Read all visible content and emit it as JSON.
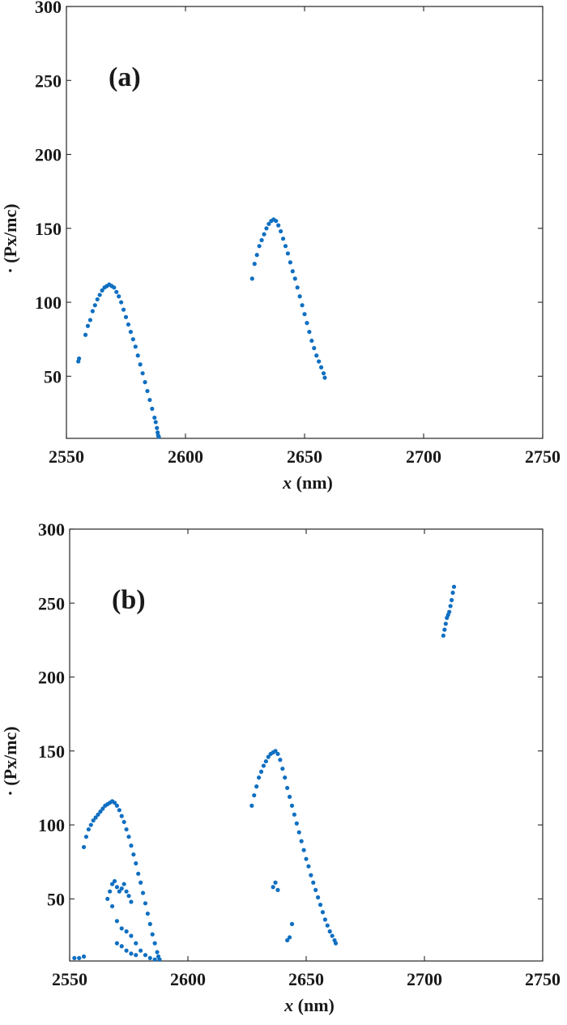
{
  "chart_data": [
    {
      "type": "scatter",
      "panel_label": "(a)",
      "xlabel": "x",
      "xlabel_unit": " (nm)",
      "ylabel_prefix": "·",
      "ylabel": "(Px/mc)",
      "xlim": [
        2550,
        2750
      ],
      "ylim": [
        8,
        300
      ],
      "xticks": [
        "2550",
        "2600",
        "2650",
        "2700",
        "2750"
      ],
      "yticks": [
        "50",
        "100",
        "150",
        "200",
        "250",
        "300"
      ],
      "grid": false,
      "legend": "none",
      "marker_color": "#0f6fc1",
      "series": [
        {
          "x": [
            2555,
            2555.3,
            2558,
            2559,
            2560,
            2561,
            2562,
            2563,
            2564,
            2565,
            2566,
            2567,
            2568,
            2569,
            2570,
            2571,
            2572,
            2573,
            2574,
            2575,
            2576,
            2577,
            2578,
            2579,
            2580,
            2581,
            2582,
            2583,
            2584,
            2585,
            2586,
            2587,
            2587.5,
            2588,
            2588.3,
            2588.5,
            2588.8
          ],
          "y": [
            60,
            62,
            78,
            84,
            88,
            94,
            98,
            102,
            105,
            108,
            110,
            111,
            112,
            111,
            110,
            107,
            104,
            100,
            95,
            90,
            85,
            80,
            75,
            70,
            64,
            58,
            52,
            46,
            40,
            34,
            28,
            22,
            19,
            15,
            12,
            10,
            9
          ]
        },
        {
          "x": [
            2628,
            2629,
            2630,
            2631,
            2632,
            2633,
            2634,
            2635,
            2636,
            2637,
            2638,
            2639,
            2640,
            2641,
            2642,
            2643,
            2644,
            2645,
            2646,
            2647,
            2648,
            2649,
            2650,
            2651,
            2652,
            2653,
            2654,
            2655,
            2656,
            2657,
            2658,
            2658.5
          ],
          "y": [
            116,
            126,
            132,
            138,
            142,
            146,
            150,
            153,
            155,
            156,
            155,
            152,
            148,
            143,
            138,
            133,
            127,
            121,
            116,
            110,
            104,
            98,
            92,
            86,
            80,
            74,
            69,
            64,
            60,
            56,
            52,
            49
          ]
        }
      ]
    },
    {
      "type": "scatter",
      "panel_label": "(b)",
      "xlabel": "x",
      "xlabel_unit": " (nm)",
      "ylabel_prefix": "·",
      "ylabel": "(Px/mc)",
      "xlim": [
        2550,
        2750
      ],
      "ylim": [
        8,
        300
      ],
      "xticks": [
        "2550",
        "2600",
        "2650",
        "2700",
        "2750"
      ],
      "yticks": [
        "50",
        "100",
        "150",
        "200",
        "250",
        "300"
      ],
      "grid": false,
      "legend": "none",
      "marker_color": "#0f6fc1",
      "series": [
        {
          "x": [
            2556,
            2557,
            2558,
            2559,
            2560,
            2561,
            2562,
            2563,
            2564,
            2565,
            2566,
            2567,
            2568,
            2569,
            2570,
            2571,
            2572,
            2573,
            2574,
            2575,
            2576,
            2577,
            2578,
            2579,
            2580,
            2581,
            2582,
            2583,
            2584,
            2585,
            2586,
            2587,
            2587.5,
            2588
          ],
          "y": [
            85,
            92,
            97,
            100,
            103,
            105,
            107,
            109,
            111,
            113,
            114,
            115,
            116,
            115,
            113,
            110,
            106,
            102,
            97,
            92,
            86,
            80,
            74,
            67,
            61,
            54,
            47,
            40,
            33,
            26,
            20,
            14,
            11,
            9
          ]
        },
        {
          "x": [
            2552,
            2554,
            2556,
            2566,
            2567,
            2568,
            2569,
            2570,
            2571,
            2572,
            2573,
            2574,
            2575,
            2576,
            2568,
            2570,
            2572,
            2574,
            2576,
            2578,
            2580,
            2582,
            2584,
            2586,
            2588,
            2570,
            2572,
            2574,
            2576,
            2578
          ],
          "y": [
            10,
            10,
            11,
            50,
            55,
            60,
            62,
            58,
            55,
            57,
            60,
            55,
            52,
            48,
            45,
            35,
            30,
            28,
            25,
            20,
            15,
            12,
            10,
            9,
            9,
            20,
            18,
            15,
            13,
            12
          ]
        },
        {
          "x": [
            2627,
            2628,
            2629,
            2630,
            2631,
            2632,
            2633,
            2634,
            2635,
            2636,
            2637,
            2638,
            2639,
            2640,
            2641,
            2642,
            2643,
            2644,
            2645,
            2646,
            2647,
            2648,
            2649,
            2650,
            2651,
            2652,
            2653,
            2654,
            2655,
            2656,
            2657,
            2658,
            2659,
            2660,
            2661,
            2662,
            2662.5
          ],
          "y": [
            113,
            120,
            126,
            132,
            136,
            140,
            143,
            146,
            148,
            149,
            150,
            148,
            144,
            138,
            132,
            125,
            119,
            113,
            107,
            101,
            95,
            89,
            83,
            77,
            72,
            66,
            61,
            56,
            51,
            46,
            41,
            36,
            32,
            28,
            25,
            22,
            20
          ]
        },
        {
          "x": [
            2636,
            2637,
            2638,
            2642,
            2643,
            2644
          ],
          "y": [
            58,
            61,
            56,
            22,
            24,
            33
          ]
        },
        {
          "x": [
            2708,
            2708.5,
            2709,
            2709.5,
            2710,
            2710.5,
            2711,
            2711.5,
            2712,
            2712.5
          ],
          "y": [
            228,
            232,
            236,
            240,
            242,
            244,
            248,
            252,
            257,
            261
          ]
        }
      ]
    }
  ]
}
